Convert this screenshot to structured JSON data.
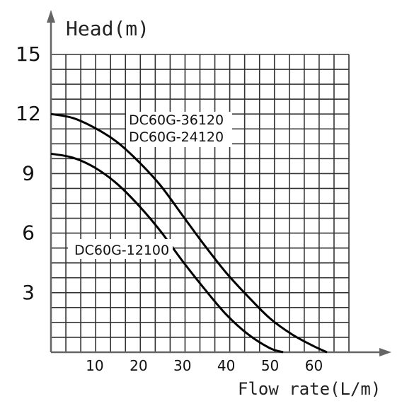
{
  "chart_data": {
    "type": "line",
    "title": "",
    "xlabel": "Flow rate(L/m)",
    "ylabel": "Head(m)",
    "xlim": [
      0,
      68
    ],
    "ylim": [
      0,
      15
    ],
    "grid": true,
    "x_ticks": [
      "10",
      "20",
      "30",
      "40",
      "50",
      "60"
    ],
    "y_ticks": [
      "3",
      "6",
      "9",
      "12",
      "15"
    ],
    "series": [
      {
        "name": "DC60G-36120 / DC60G-24120",
        "labels": [
          "DC60G-36120",
          "DC60G-24120"
        ],
        "x": [
          0,
          5,
          10,
          15,
          20,
          25,
          30,
          35,
          40,
          45,
          50,
          55,
          60,
          63
        ],
        "y": [
          12,
          11.8,
          11.3,
          10.6,
          9.6,
          8.4,
          6.9,
          5.4,
          4.0,
          2.8,
          1.7,
          0.9,
          0.3,
          0
        ]
      },
      {
        "name": "DC60G-12100",
        "labels": [
          "DC60G-12100"
        ],
        "x": [
          0,
          5,
          10,
          15,
          20,
          25,
          30,
          35,
          40,
          45,
          50,
          53
        ],
        "y": [
          10,
          9.8,
          9.3,
          8.5,
          7.4,
          6.1,
          4.6,
          3.2,
          1.9,
          0.9,
          0.2,
          0
        ]
      }
    ]
  }
}
